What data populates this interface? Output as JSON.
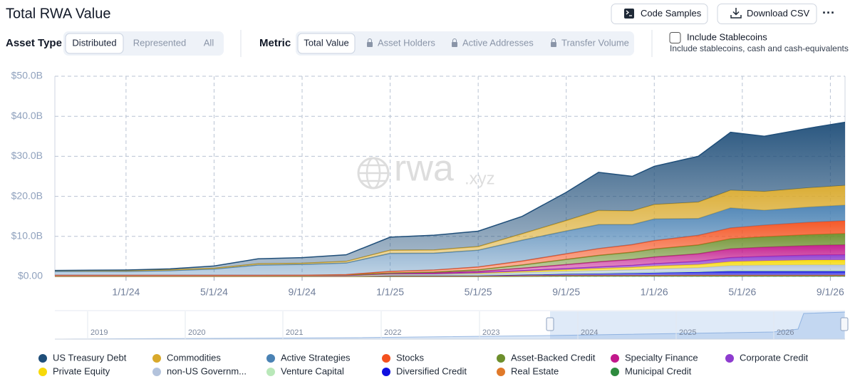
{
  "header": {
    "title": "Total RWA Value",
    "buttons": [
      "Code Samples",
      "Download CSV"
    ],
    "more": "···"
  },
  "controls": {
    "asset_type": {
      "label": "Asset Type",
      "options": [
        "Distributed",
        "Represented",
        "All"
      ]
    },
    "metric": {
      "label": "Metric",
      "options": [
        "Total Value",
        "Asset Holders",
        "Active Addresses",
        "Transfer Volume"
      ]
    },
    "stablecoins": {
      "label": "Include Stablecoins",
      "note": "Include stablecoins, cash and cash-equivalents"
    }
  },
  "watermark": [
    "rwa",
    ".xyz"
  ],
  "navigator": {
    "years": [
      "2019",
      "2020",
      "2021",
      "2022",
      "2023",
      "2024",
      "2025",
      "2026"
    ]
  },
  "chart_data": {
    "type": "stacked_area",
    "x": [
      "9/24/23",
      "1/1/24",
      "3/1/24",
      "5/1/24",
      "7/1/24",
      "9/1/24",
      "11/1/24",
      "1/1/25",
      "3/1/25",
      "5/1/25",
      "7/1/25",
      "9/1/25",
      "10/15/25",
      "12/1/25",
      "1/1/26",
      "3/1/26",
      "4/15/26",
      "6/1/26",
      "8/1/26",
      "9/21/26"
    ],
    "xlim": [
      "9/24/23",
      "9/21/26"
    ],
    "xticks": [
      "1/1/24",
      "5/1/24",
      "9/1/24",
      "1/1/25",
      "5/1/25",
      "9/1/25",
      "1/1/26",
      "5/1/26",
      "9/1/26"
    ],
    "ylim": [
      0,
      50
    ],
    "yticks": [
      {
        "value": 0,
        "label": "$0.00"
      },
      {
        "value": 10,
        "label": "$10.0B"
      },
      {
        "value": 20,
        "label": "$20.0B"
      },
      {
        "value": 30,
        "label": "$30.0B"
      },
      {
        "value": 40,
        "label": "$40.0B"
      },
      {
        "value": 50,
        "label": "$50.0B"
      }
    ],
    "grid": true,
    "legend": "bottom",
    "series": [
      {
        "name": "US Treasury Debt",
        "color": "#1f4e79",
        "values": [
          0.05,
          0.15,
          0.25,
          0.55,
          1.25,
          1.4,
          1.65,
          3.25,
          3.7,
          3.85,
          4.35,
          7.05,
          9.55,
          8.65,
          9.55,
          11.45,
          14.5,
          13.8,
          14.9,
          15.8
        ]
      },
      {
        "name": "Commodities",
        "color": "#d9a92b",
        "values": [
          0.2,
          0.2,
          0.2,
          0.2,
          0.3,
          0.3,
          0.4,
          0.8,
          0.8,
          0.9,
          1.6,
          2.6,
          3.5,
          3.4,
          3.6,
          4.1,
          4.4,
          4.7,
          4.8,
          4.9
        ]
      },
      {
        "name": "Active Strategies",
        "color": "#4a82b4",
        "values": [
          1.0,
          1.0,
          1.2,
          1.6,
          2.6,
          2.7,
          2.9,
          4.5,
          4.2,
          4.2,
          5.2,
          5.7,
          6.0,
          5.0,
          5.4,
          4.2,
          5.0,
          3.7,
          3.8,
          3.9
        ]
      },
      {
        "name": "Stocks",
        "color": "#f4511e",
        "values": [
          0,
          0,
          0,
          0,
          0,
          0.05,
          0.1,
          0.4,
          0.5,
          0.7,
          1.0,
          1.4,
          1.7,
          1.9,
          2.1,
          2.4,
          2.7,
          2.9,
          3.1,
          3.2
        ]
      },
      {
        "name": "Asset-Backed Credit",
        "color": "#6d8f2c",
        "values": [
          0,
          0,
          0,
          0,
          0,
          0,
          0.05,
          0.1,
          0.2,
          0.4,
          0.8,
          1.3,
          1.6,
          1.8,
          2.0,
          2.2,
          2.5,
          2.6,
          2.7,
          2.8
        ]
      },
      {
        "name": "Specialty Finance",
        "color": "#c2188b",
        "values": [
          0,
          0,
          0,
          0,
          0,
          0,
          0.05,
          0.1,
          0.2,
          0.3,
          0.6,
          1.0,
          1.3,
          1.5,
          1.7,
          1.9,
          2.2,
          2.3,
          2.4,
          2.5
        ]
      },
      {
        "name": "Corporate Credit",
        "color": "#8e3ccf",
        "values": [
          0,
          0,
          0,
          0,
          0,
          0,
          0,
          0.05,
          0.05,
          0.1,
          0.2,
          0.3,
          0.4,
          0.5,
          0.6,
          0.8,
          1.0,
          1.1,
          1.2,
          1.3
        ]
      },
      {
        "name": "Private Equity",
        "color": "#f7d90a",
        "values": [
          0,
          0,
          0,
          0,
          0,
          0,
          0,
          0.05,
          0.1,
          0.2,
          0.3,
          0.4,
          0.5,
          0.6,
          0.7,
          0.8,
          1.0,
          1.1,
          1.2,
          1.2
        ]
      },
      {
        "name": "non-US Governm...",
        "color": "#b3c3dc",
        "values": [
          0.1,
          0.1,
          0.1,
          0.1,
          0.1,
          0.1,
          0.1,
          0.2,
          0.2,
          0.3,
          0.4,
          0.5,
          0.6,
          0.7,
          0.8,
          0.9,
          1.2,
          1.3,
          1.4,
          1.4
        ]
      },
      {
        "name": "Venture Capital",
        "color": "#b9e8b9",
        "values": [
          0,
          0,
          0,
          0,
          0,
          0,
          0,
          0.05,
          0.05,
          0.05,
          0.1,
          0.1,
          0.1,
          0.1,
          0.1,
          0.15,
          0.2,
          0.2,
          0.2,
          0.2
        ]
      },
      {
        "name": "Diversified Credit",
        "color": "#1010e0",
        "values": [
          0.1,
          0.1,
          0.1,
          0.1,
          0.1,
          0.1,
          0.1,
          0.2,
          0.2,
          0.2,
          0.3,
          0.4,
          0.5,
          0.6,
          0.7,
          0.8,
          1.0,
          1.0,
          1.0,
          1.0
        ]
      },
      {
        "name": "Real Estate",
        "color": "#e0792a",
        "values": [
          0.05,
          0.05,
          0.05,
          0.05,
          0.05,
          0.05,
          0.05,
          0.1,
          0.1,
          0.1,
          0.1,
          0.15,
          0.15,
          0.15,
          0.15,
          0.2,
          0.2,
          0.2,
          0.2,
          0.2
        ]
      },
      {
        "name": "Municipal Credit",
        "color": "#2e8b3e",
        "values": [
          0,
          0,
          0,
          0,
          0,
          0,
          0,
          0,
          0,
          0,
          0.05,
          0.1,
          0.1,
          0.1,
          0.1,
          0.1,
          0.1,
          0.1,
          0.1,
          0.1
        ]
      }
    ]
  }
}
